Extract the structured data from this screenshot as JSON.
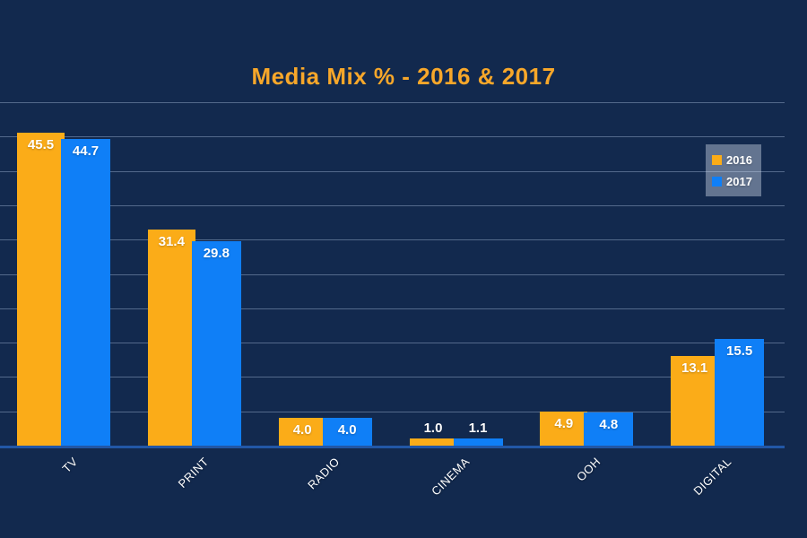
{
  "title": {
    "text": "Media Mix % - 2016 & 2017",
    "color": "#F7A72A"
  },
  "chart_data": {
    "type": "bar",
    "title": "Media Mix % - 2016 & 2017",
    "categories": [
      "TV",
      "PRINT",
      "RADIO",
      "CINEMA",
      "OOH",
      "DIGITAL"
    ],
    "series": [
      {
        "name": "2016",
        "color": "#FBAC18",
        "values": [
          45.5,
          31.4,
          4.0,
          1.0,
          4.9,
          13.1
        ]
      },
      {
        "name": "2017",
        "color": "#0F7FF7",
        "values": [
          44.7,
          29.8,
          4.0,
          1.1,
          4.8,
          15.5
        ]
      }
    ],
    "xlabel": "",
    "ylabel": "",
    "ylim": [
      0,
      50
    ],
    "gridline_step": 5,
    "grid": true,
    "legend_position": "right",
    "value_label_decimals": 1
  },
  "colors": {
    "background": "#12294E",
    "gridline": "rgba(165,185,215,0.45)",
    "axis_line": "#2257A6",
    "value_label": "#FFFFFF",
    "category_label": "#FFFFFF",
    "legend_background": "rgba(222,230,244,0.40)"
  }
}
